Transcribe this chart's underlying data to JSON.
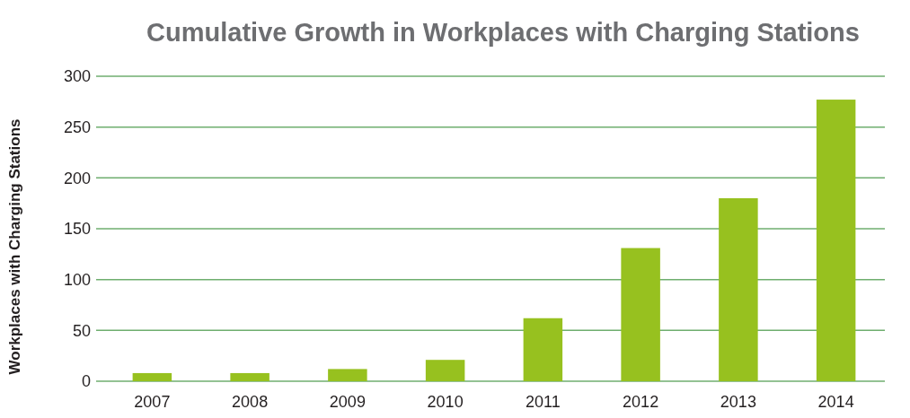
{
  "chart_data": {
    "type": "bar",
    "title": "Cumulative Growth in Workplaces with Charging Stations",
    "ylabel": "Workplaces with Charging Stations",
    "categories": [
      "2007",
      "2008",
      "2009",
      "2010",
      "2011",
      "2012",
      "2013",
      "2014"
    ],
    "values": [
      8,
      8,
      12,
      21,
      62,
      131,
      180,
      277
    ],
    "color": "#97c11f",
    "ylim": [
      0,
      300
    ],
    "yticks": [
      0,
      50,
      100,
      150,
      200,
      250,
      300
    ],
    "grid": "y"
  }
}
